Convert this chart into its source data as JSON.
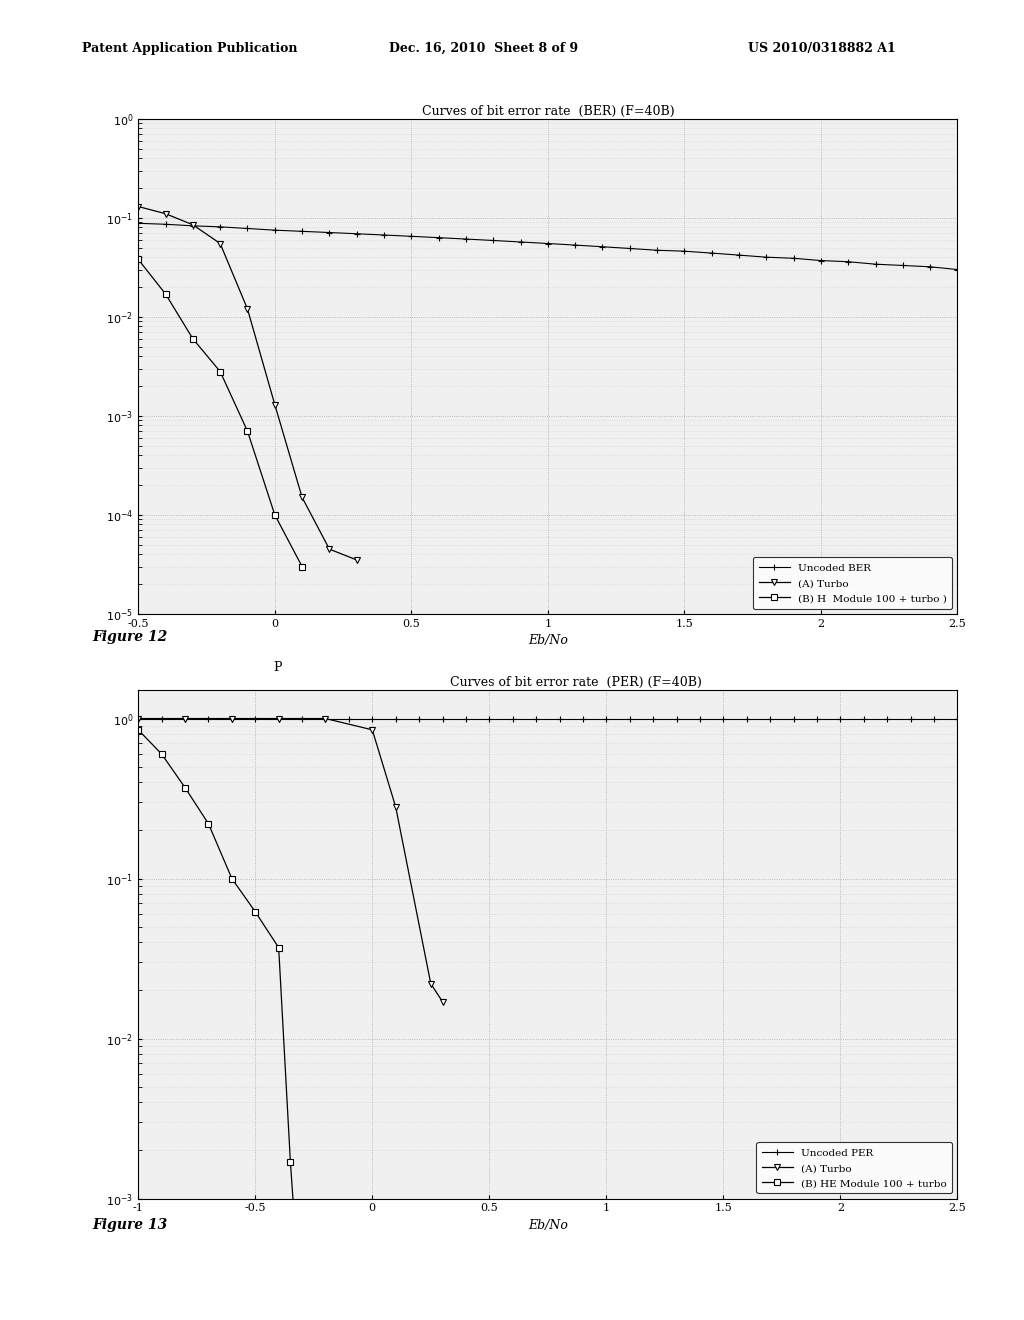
{
  "fig_width": 10.24,
  "fig_height": 13.2,
  "background_color": "#ffffff",
  "header_left": "Patent Application Publication",
  "header_mid": "Dec. 16, 2010  Sheet 8 of 9",
  "header_right": "US 2010/0318882 A1",
  "plot1": {
    "title": "Curves of bit error rate  (BER) (F=40B)",
    "xlabel": "Eb/No",
    "xlim": [
      -0.5,
      2.5
    ],
    "ylim": [
      1e-05,
      1.0
    ],
    "xticks": [
      -0.5,
      0,
      0.5,
      1,
      1.5,
      2,
      2.5
    ],
    "xtick_labels": [
      "-0.5",
      "0",
      "0.5",
      "1",
      "1.5",
      "2",
      "2.5"
    ],
    "legend_labels": [
      "Uncoded BER",
      "(A) Turbo",
      "(B) H  Module 100 + turbo )"
    ],
    "uncoded_x": [
      -0.5,
      -0.4,
      -0.3,
      -0.2,
      -0.1,
      0.0,
      0.1,
      0.2,
      0.3,
      0.4,
      0.5,
      0.6,
      0.7,
      0.8,
      0.9,
      1.0,
      1.1,
      1.2,
      1.3,
      1.4,
      1.5,
      1.6,
      1.7,
      1.8,
      1.9,
      2.0,
      2.1,
      2.2,
      2.3,
      2.4,
      2.5
    ],
    "uncoded_y": [
      0.088,
      0.086,
      0.083,
      0.081,
      0.078,
      0.075,
      0.073,
      0.071,
      0.069,
      0.067,
      0.065,
      0.063,
      0.061,
      0.059,
      0.057,
      0.055,
      0.053,
      0.051,
      0.049,
      0.047,
      0.046,
      0.044,
      0.042,
      0.04,
      0.039,
      0.037,
      0.036,
      0.034,
      0.033,
      0.032,
      0.03
    ],
    "turbo_x": [
      -0.5,
      -0.4,
      -0.3,
      -0.2,
      -0.1,
      0.0,
      0.1,
      0.2,
      0.3
    ],
    "turbo_y": [
      0.13,
      0.11,
      0.085,
      0.055,
      0.012,
      0.0013,
      0.00015,
      4.5e-05,
      3.5e-05
    ],
    "module_x": [
      -0.5,
      -0.4,
      -0.3,
      -0.2,
      -0.1,
      0.0,
      0.1
    ],
    "module_y": [
      0.038,
      0.017,
      0.006,
      0.0028,
      0.0007,
      0.0001,
      3e-05
    ]
  },
  "figure12_label": "Figure 12",
  "plot2": {
    "title": "Curves of bit error rate  (PER) (F=40B)",
    "title_prefix": "P",
    "xlabel": "Eb/No",
    "xlim": [
      -1.0,
      2.5
    ],
    "ylim": [
      0.001,
      1.5
    ],
    "xticks": [
      -1,
      -0.5,
      0,
      0.5,
      1,
      1.5,
      2,
      2.5
    ],
    "xtick_labels": [
      "-1",
      "-0.5",
      "0",
      "0.5",
      "1",
      "1.5",
      "2",
      "2.5"
    ],
    "legend_labels": [
      "Uncoded PER",
      "(A) Turbo",
      "(B) HE Module 100 + turbo"
    ],
    "uncoded_x": [
      -1.0,
      -0.9,
      -0.8,
      -0.7,
      -0.6,
      -0.5,
      -0.4,
      -0.3,
      -0.2,
      -0.1,
      0.0,
      0.1,
      0.2,
      0.3,
      0.4,
      0.5,
      0.6,
      0.7,
      0.8,
      0.9,
      1.0,
      1.1,
      1.2,
      1.3,
      1.4,
      1.5,
      1.6,
      1.7,
      1.8,
      1.9,
      2.0,
      2.1,
      2.2,
      2.3,
      2.4,
      2.5
    ],
    "uncoded_y": [
      1.0,
      1.0,
      1.0,
      1.0,
      1.0,
      1.0,
      1.0,
      1.0,
      1.0,
      1.0,
      1.0,
      1.0,
      1.0,
      1.0,
      1.0,
      1.0,
      1.0,
      1.0,
      1.0,
      1.0,
      1.0,
      1.0,
      1.0,
      1.0,
      1.0,
      1.0,
      1.0,
      1.0,
      1.0,
      1.0,
      1.0,
      1.0,
      1.0,
      1.0,
      1.0,
      1.0
    ],
    "turbo_x": [
      -1.0,
      -0.8,
      -0.6,
      -0.4,
      -0.2,
      0.0,
      0.1,
      0.25,
      0.3
    ],
    "turbo_y": [
      1.0,
      1.0,
      1.0,
      1.0,
      1.0,
      0.85,
      0.28,
      0.022,
      0.017
    ],
    "module_x": [
      -1.0,
      -0.9,
      -0.8,
      -0.7,
      -0.6,
      -0.5,
      -0.4,
      -0.35,
      -0.3
    ],
    "module_y": [
      0.85,
      0.6,
      0.37,
      0.22,
      0.1,
      0.062,
      0.037,
      0.0017,
      0.00015
    ]
  },
  "figure13_label": "Figure 13",
  "line_color": "#000000",
  "grid_color_major": "#aaaaaa",
  "grid_color_minor": "#cccccc",
  "grid_linestyle": ":",
  "grid_linewidth_major": 0.6,
  "grid_linewidth_minor": 0.4
}
